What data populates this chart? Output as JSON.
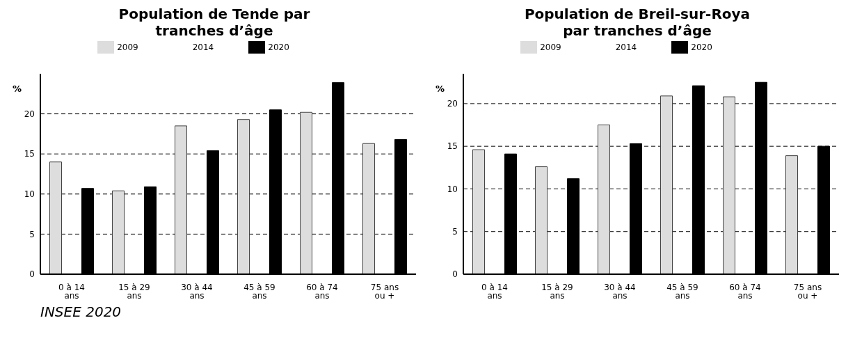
{
  "chart_data": [
    {
      "type": "bar",
      "title": "Population de Tende par tranches d’âge",
      "ylabel": "%",
      "categories": [
        "0 à 14 ans",
        "15 à 29 ans",
        "30 à 44 ans",
        "45 à 59 ans",
        "60 à 74 ans",
        "75 ans ou +"
      ],
      "series": [
        {
          "name": "2009",
          "color": "#dddddd",
          "values": [
            14.0,
            10.4,
            18.5,
            19.3,
            20.2,
            16.3
          ]
        },
        {
          "name": "2014",
          "values": [
            null,
            null,
            null,
            null,
            null,
            null
          ]
        },
        {
          "name": "2020",
          "color": "#000000",
          "values": [
            10.7,
            10.9,
            15.4,
            20.5,
            23.9,
            16.8
          ]
        }
      ],
      "ylim": [
        0,
        25
      ],
      "yticks": [
        0,
        5,
        10,
        15,
        20
      ],
      "grid": "y",
      "legend": "top",
      "annotations": [
        "INSEE 2020"
      ]
    },
    {
      "type": "bar",
      "title": "Population de Breil-sur-Roya par tranches d’âge",
      "ylabel": "%",
      "categories": [
        "0 à 14 ans",
        "15 à 29 ans",
        "30 à 44 ans",
        "45 à 59 ans",
        "60 à 74 ans",
        "75 ans ou +"
      ],
      "series": [
        {
          "name": "2009",
          "color": "#dddddd",
          "values": [
            14.6,
            12.6,
            17.5,
            20.9,
            20.8,
            13.9
          ]
        },
        {
          "name": "2014",
          "values": [
            null,
            null,
            null,
            null,
            null,
            null
          ]
        },
        {
          "name": "2020",
          "color": "#000000",
          "values": [
            14.1,
            11.2,
            15.3,
            22.1,
            22.5,
            15.0
          ]
        }
      ],
      "ylim": [
        0,
        23.5
      ],
      "yticks": [
        0,
        5,
        10,
        15,
        20
      ],
      "grid": "y",
      "legend": "top"
    }
  ]
}
